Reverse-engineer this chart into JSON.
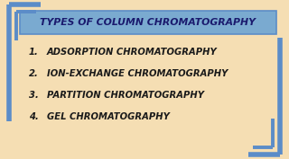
{
  "title": "TYPES OF COLUMN CHROMATOGRAPHY",
  "items": [
    "ADSORPTION CHROMATOGRAPHY",
    "ION-EXCHANGE CHROMATOGRAPHY",
    "PARTITION CHROMATOGRAPHY",
    "GEL CHROMATOGRAPHY"
  ],
  "bg_color": "#f5deb3",
  "bracket_color": "#5b8cc8",
  "title_bg_color": "#7aaad0",
  "title_text_color": "#1a1a6e",
  "item_text_color": "#1a1a1a",
  "title_fontsize": 7.8,
  "item_fontsize": 7.2,
  "bracket_lw": 4.0
}
